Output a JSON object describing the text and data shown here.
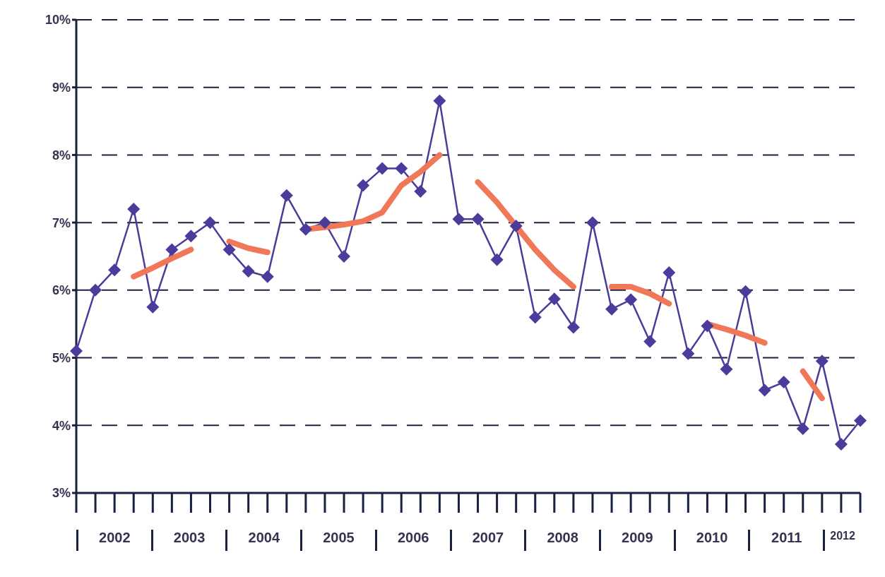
{
  "chart_data": {
    "type": "line",
    "categories": [
      null,
      null,
      null,
      null,
      null,
      null,
      null,
      null,
      null,
      null,
      null,
      null,
      null,
      null,
      null,
      null,
      null,
      null,
      null,
      null,
      null,
      null,
      null,
      null,
      null,
      null,
      null,
      null,
      null,
      null,
      null,
      null,
      null,
      null,
      null,
      null,
      null,
      null,
      null,
      null,
      null,
      null
    ],
    "series": [
      {
        "color": "#4b3c9c",
        "marker": "diamond",
        "values": [
          5.1,
          6.0,
          6.3,
          7.2,
          5.75,
          6.6,
          6.8,
          7.0,
          6.6,
          6.28,
          6.2,
          7.4,
          6.9,
          7.0,
          6.5,
          7.55,
          7.8,
          7.8,
          7.46,
          8.8,
          7.05,
          7.05,
          6.45,
          6.95,
          5.6,
          5.87,
          5.45,
          7.0,
          5.72,
          5.86,
          5.24,
          6.26,
          5.06,
          5.47,
          4.83,
          5.98,
          4.52,
          4.64,
          3.95,
          4.95,
          3.72,
          4.07
        ]
      },
      {
        "color": "#f07858",
        "marker": "none",
        "values": [
          null,
          null,
          null,
          6.2,
          6.33,
          6.47,
          6.6,
          null,
          6.72,
          6.62,
          6.56,
          null,
          6.9,
          6.93,
          6.97,
          7.02,
          7.15,
          7.55,
          7.75,
          8.0,
          null,
          7.6,
          7.3,
          6.95,
          6.6,
          6.3,
          6.05,
          null,
          6.05,
          6.05,
          5.95,
          5.8,
          null,
          5.5,
          5.42,
          5.33,
          5.22,
          null,
          4.8,
          4.4,
          null,
          null
        ]
      }
    ],
    "ylim": [
      3,
      10
    ],
    "yticks": [
      {
        "value": 3,
        "label": "3%"
      },
      {
        "value": 4,
        "label": "4%"
      },
      {
        "value": 5,
        "label": "5%"
      },
      {
        "value": 6,
        "label": "6%"
      },
      {
        "value": 7,
        "label": "7%"
      },
      {
        "value": 8,
        "label": "8%"
      },
      {
        "value": 9,
        "label": "9%"
      },
      {
        "value": 10,
        "label": "10%"
      }
    ],
    "grid": "y",
    "line_style": "solid",
    "legend": false,
    "annotations": [
      "2002",
      "2003",
      "2004",
      "2005",
      "2006",
      "2007",
      "2008",
      "2009",
      "2010",
      "2011",
      "2012"
    ]
  }
}
